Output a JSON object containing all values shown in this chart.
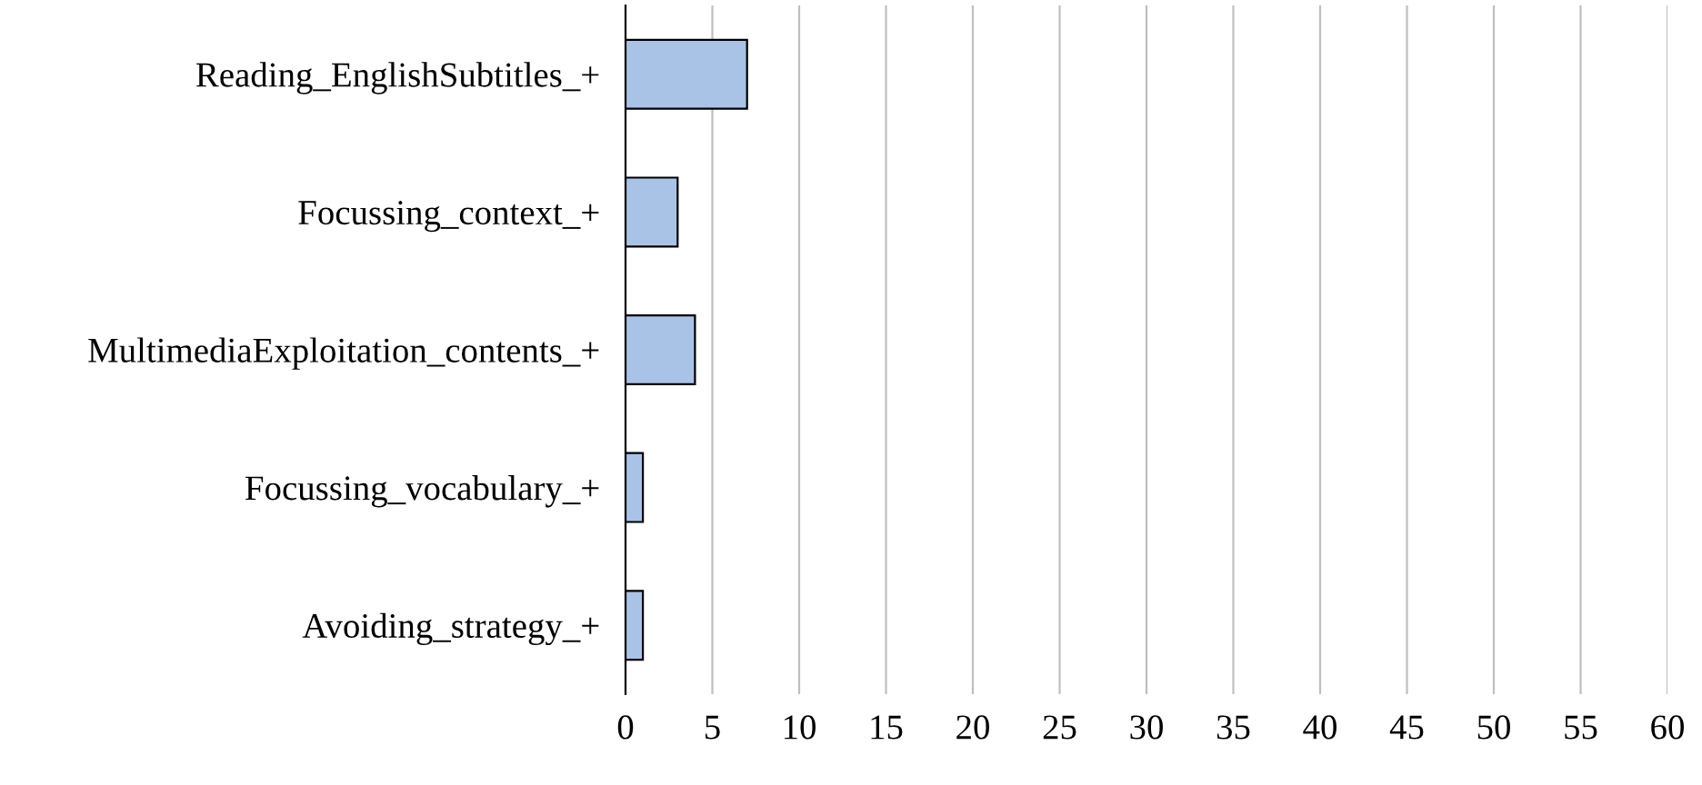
{
  "chart_data": {
    "type": "bar",
    "orientation": "horizontal",
    "categories": [
      "Reading_EnglishSubtitles_+",
      "Focussing_context_+",
      "MultimediaExploitation_contents_+",
      "Focussing_vocabulary_+",
      "Avoiding_strategy_+"
    ],
    "values": [
      7,
      3,
      4,
      1,
      1
    ],
    "color": "#a9c3e6",
    "xlim": [
      0,
      60
    ],
    "xticks": [
      0,
      5,
      10,
      15,
      20,
      25,
      30,
      35,
      40,
      45,
      50,
      55,
      60
    ],
    "grid": "x"
  }
}
